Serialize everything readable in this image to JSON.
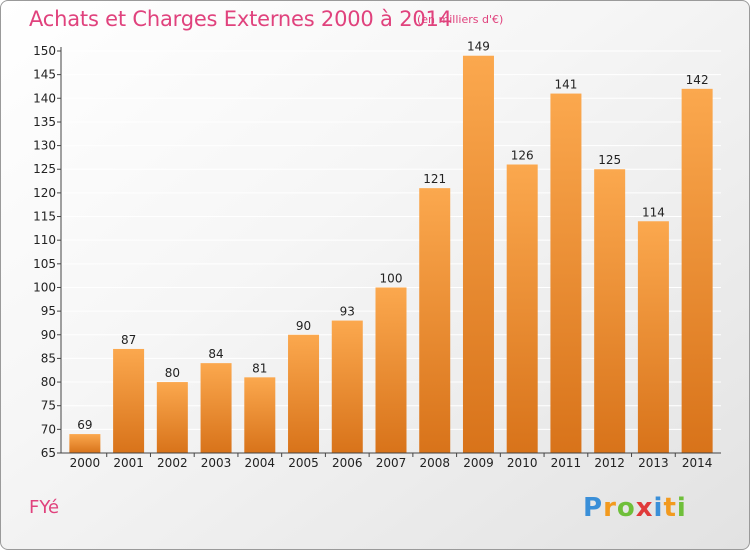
{
  "header": {
    "title": "Achats et Charges Externes 2000 à 2014",
    "unit": "(en milliers d'€)"
  },
  "footer": {
    "commune": "FYé",
    "logo_letters": [
      "P",
      "r",
      "o",
      "x",
      "i",
      "t",
      "i"
    ],
    "logo_colors": [
      "#3a8fd8",
      "#f29a1f",
      "#6fbf3a",
      "#e03a3a",
      "#3a8fd8",
      "#f29a1f",
      "#6fbf3a"
    ]
  },
  "colors": {
    "bar_light": "#fba84e",
    "bar_dark": "#d8731a",
    "axis": "#444444",
    "grid": "#ffffff",
    "text": "#222222",
    "accent": "#e0427d"
  },
  "chart_data": {
    "type": "bar",
    "title": "Achats et Charges Externes 2000 à 2014",
    "subtitle": "(en milliers d'€)",
    "xlabel": "",
    "ylabel": "",
    "categories": [
      "2000",
      "2001",
      "2002",
      "2003",
      "2004",
      "2005",
      "2006",
      "2007",
      "2008",
      "2009",
      "2010",
      "2011",
      "2012",
      "2013",
      "2014"
    ],
    "values": [
      69,
      87,
      80,
      84,
      81,
      90,
      93,
      100,
      121,
      149,
      126,
      141,
      125,
      114,
      142
    ],
    "ylim": [
      65,
      150
    ],
    "yticks": [
      65,
      70,
      75,
      80,
      85,
      90,
      95,
      100,
      105,
      110,
      115,
      120,
      125,
      130,
      135,
      140,
      145,
      150
    ],
    "grid": true,
    "legend": "none"
  }
}
